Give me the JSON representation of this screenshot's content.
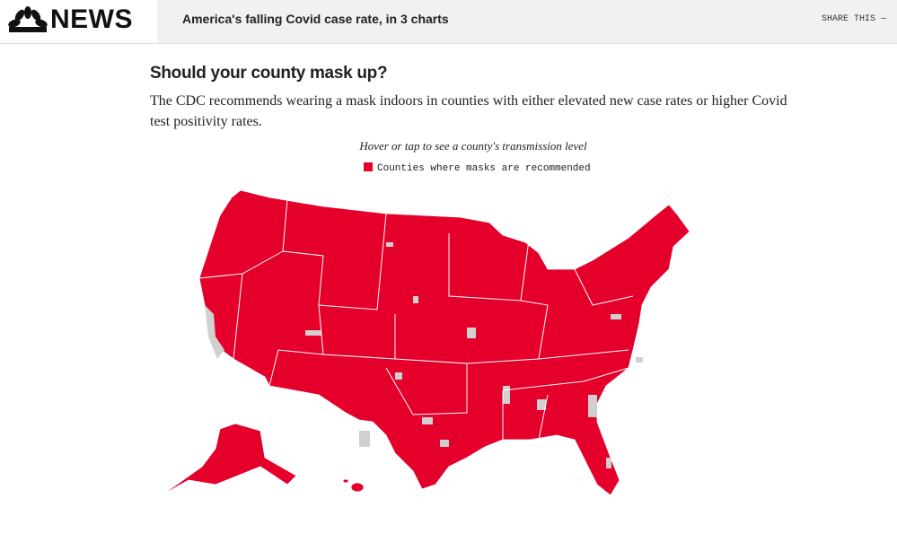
{
  "header": {
    "logo": "NEWS",
    "headline": "America's falling Covid case rate, in 3 charts",
    "share": "SHARE THIS —"
  },
  "article": {
    "heading": "Should your county mask up?",
    "body": "The CDC recommends wearing a mask indoors in counties with either elevated new case rates or higher Covid test positivity rates."
  },
  "map": {
    "caption": "Hover or tap to see a county's transmission level",
    "legend": "Counties where masks are recommended"
  }
}
